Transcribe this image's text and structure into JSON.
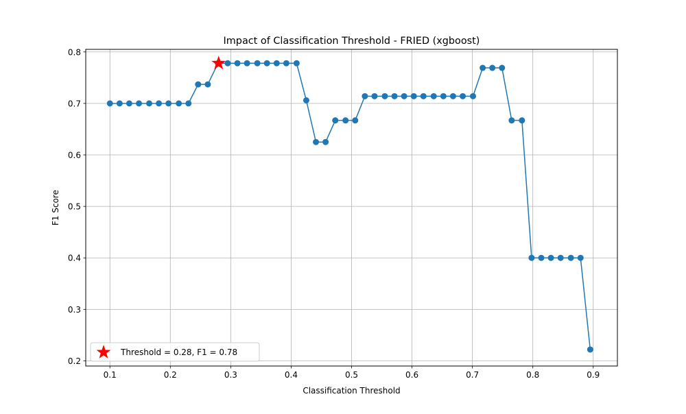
{
  "chart_data": {
    "type": "line",
    "title": "Impact of Classification Threshold - FRIED (xgboost)",
    "xlabel": "Classification Threshold",
    "ylabel": "F1 Score",
    "xlim": [
      0.06,
      0.94
    ],
    "ylim": [
      0.19,
      0.805
    ],
    "xticks": [
      0.1,
      0.2,
      0.3,
      0.4,
      0.5,
      0.6,
      0.7,
      0.8,
      0.9
    ],
    "xtick_labels": [
      "0.1",
      "0.2",
      "0.3",
      "0.4",
      "0.5",
      "0.6",
      "0.7",
      "0.8",
      "0.9"
    ],
    "yticks": [
      0.2,
      0.3,
      0.4,
      0.5,
      0.6,
      0.7,
      0.8
    ],
    "ytick_labels": [
      "0.2",
      "0.3",
      "0.4",
      "0.5",
      "0.6",
      "0.7",
      "0.8"
    ],
    "grid": true,
    "legend_position": "lower-left",
    "series": [
      {
        "color": "#1f77b4",
        "marker": "circle",
        "x": [
          0.1,
          0.116,
          0.132,
          0.148,
          0.165,
          0.181,
          0.197,
          0.214,
          0.23,
          0.246,
          0.262,
          0.279,
          0.295,
          0.311,
          0.327,
          0.344,
          0.36,
          0.376,
          0.392,
          0.409,
          0.425,
          0.441,
          0.457,
          0.473,
          0.49,
          0.506,
          0.522,
          0.538,
          0.555,
          0.571,
          0.587,
          0.603,
          0.619,
          0.636,
          0.652,
          0.668,
          0.684,
          0.701,
          0.717,
          0.733,
          0.749,
          0.765,
          0.782,
          0.798,
          0.814,
          0.83,
          0.846,
          0.863,
          0.879,
          0.895
        ],
        "values": [
          0.7,
          0.7,
          0.7,
          0.7,
          0.7,
          0.7,
          0.7,
          0.7,
          0.7,
          0.737,
          0.737,
          0.778,
          0.778,
          0.778,
          0.778,
          0.778,
          0.778,
          0.778,
          0.778,
          0.778,
          0.706,
          0.625,
          0.625,
          0.667,
          0.667,
          0.667,
          0.714,
          0.714,
          0.714,
          0.714,
          0.714,
          0.714,
          0.714,
          0.714,
          0.714,
          0.714,
          0.714,
          0.714,
          0.769,
          0.769,
          0.769,
          0.667,
          0.667,
          0.4,
          0.4,
          0.4,
          0.4,
          0.4,
          0.4,
          0.222
        ]
      }
    ],
    "highlight": {
      "x": 0.28,
      "y": 0.778,
      "color": "#ff0000",
      "marker": "star",
      "legend_label": "Threshold = 0.28, F1 = 0.78"
    }
  }
}
